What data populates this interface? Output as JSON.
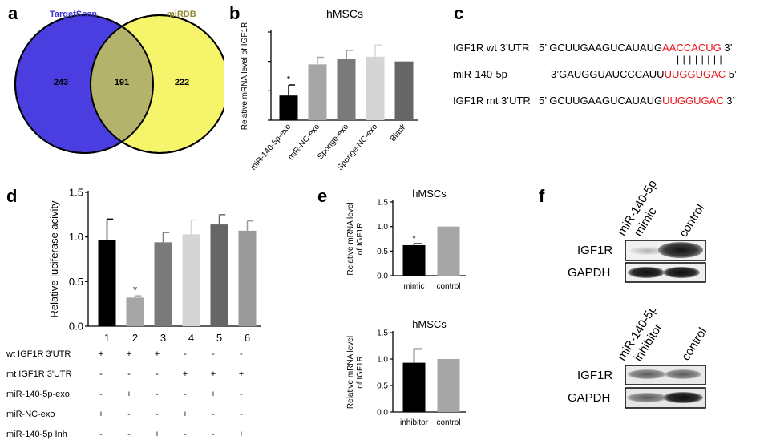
{
  "panels": {
    "a": "a",
    "b": "b",
    "c": "c",
    "d": "d",
    "e": "e",
    "f": "f"
  },
  "venn": {
    "left_title": "TargetScan",
    "right_title": "miRDB",
    "left_only": "243",
    "overlap": "191",
    "right_only": "222",
    "colors": {
      "left": "#4a3ee0",
      "right": "#f6f46a",
      "overlap": "#b3b36c",
      "left_title": "#3b30d8",
      "right_title": "#8c8a2a"
    }
  },
  "chart_data": [
    {
      "id": "b",
      "type": "bar",
      "title": "hMSCs",
      "ylabel": "Relative mRNA level of IGF1R",
      "categories": [
        "miR-140-5p-exo",
        "miR-NC-exo",
        "Sponge-exo",
        "Sponge-NC-exo",
        "Blank"
      ],
      "values": [
        0.42,
        0.95,
        1.05,
        1.08,
        1.0
      ],
      "errors": [
        0.18,
        0.12,
        0.14,
        0.2,
        0
      ],
      "colors": [
        "#000000",
        "#a6a6a6",
        "#7a7a7a",
        "#d5d5d5",
        "#666666"
      ],
      "annotations": [
        "*",
        "",
        "",
        "",
        ""
      ],
      "ylim": [
        0,
        1.5
      ]
    },
    {
      "id": "d",
      "type": "bar",
      "title": "",
      "ylabel": "Relative luciferase acivity",
      "categories": [
        "1",
        "2",
        "3",
        "4",
        "5",
        "6"
      ],
      "values": [
        0.97,
        0.32,
        0.94,
        1.03,
        1.14,
        1.07
      ],
      "errors": [
        0.23,
        0.02,
        0.11,
        0.16,
        0.11,
        0.11
      ],
      "colors": [
        "#000000",
        "#a6a6a6",
        "#7a7a7a",
        "#d5d5d5",
        "#666666",
        "#9a9a9a"
      ],
      "annotations": [
        "",
        "*",
        "",
        "",
        "",
        ""
      ],
      "ylim": [
        0,
        1.5
      ],
      "yticks": [
        "0.0",
        "0.5",
        "1.0",
        "1.5"
      ]
    },
    {
      "id": "e-top",
      "type": "bar",
      "title": "hMSCs",
      "ylabel": "Relative mRNA level of IGF1R",
      "categories": [
        "mimic",
        "control"
      ],
      "values": [
        0.62,
        1.0
      ],
      "errors": [
        0.03,
        0
      ],
      "colors": [
        "#000000",
        "#a6a6a6"
      ],
      "annotations": [
        "*",
        ""
      ],
      "ylim": [
        0,
        1.5
      ],
      "yticks": [
        "0.0",
        "0.5",
        "1.0",
        "1.5"
      ]
    },
    {
      "id": "e-bottom",
      "type": "bar",
      "title": "hMSCs",
      "ylabel": "Relative mRNA level of IGF1R",
      "categories": [
        "inhibitor",
        "control"
      ],
      "values": [
        0.93,
        1.0
      ],
      "errors": [
        0.26,
        0
      ],
      "colors": [
        "#000000",
        "#a6a6a6"
      ],
      "annotations": [
        "",
        ""
      ],
      "ylim": [
        0,
        1.5
      ],
      "yticks": [
        "0.0",
        "0.5",
        "1.0",
        "1.5"
      ]
    }
  ],
  "sequences": {
    "row1": {
      "label": "IGF1R wt 3’UTR",
      "prefix": "5’ GCUUGAAGUCAUAUG",
      "highlight": "AACCACUG",
      "suffix": " 3’"
    },
    "pairs": "| | | | | | | |",
    "row2": {
      "label": "miR-140-5p",
      "prefix": "3’GAUGGUAUCCCAUU",
      "highlight": "UUGGUGAC",
      "suffix": " 5’"
    },
    "row3": {
      "label": "IGF1R mt 3’UTR",
      "prefix": "5’ GCUUGAAGUCAUAUG",
      "highlight": "UUGGUGAC",
      "suffix": " 3’"
    }
  },
  "table_d": {
    "rows": [
      {
        "label": "wt IGF1R 3'UTR",
        "signs": [
          "+",
          "+",
          "+",
          "-",
          "-",
          "-"
        ]
      },
      {
        "label": "mt IGF1R 3'UTR",
        "signs": [
          "-",
          "-",
          "-",
          "+",
          "+",
          "+"
        ]
      },
      {
        "label": "miR-140-5p-exo",
        "signs": [
          "-",
          "+",
          "-",
          "-",
          "+",
          "-"
        ]
      },
      {
        "label": "miR-NC-exo",
        "signs": [
          "+",
          "-",
          "-",
          "+",
          "-",
          "-"
        ]
      },
      {
        "label": "miR-140-5p Inh",
        "signs": [
          "-",
          "-",
          "+",
          "-",
          "-",
          "+"
        ]
      }
    ]
  },
  "blots": {
    "top": {
      "lane1": "miR-140-5p\nmimic",
      "lane1_line1": "miR-140-5p",
      "lane1_line2": "mimic",
      "lane2": "control",
      "band1": "IGF1R",
      "band2": "GAPDH"
    },
    "bottom": {
      "lane1_line1": "miR-140-5p",
      "lane1_line2": "inhibitor",
      "lane2": "control",
      "band1": "IGF1R",
      "band2": "GAPDH"
    }
  }
}
